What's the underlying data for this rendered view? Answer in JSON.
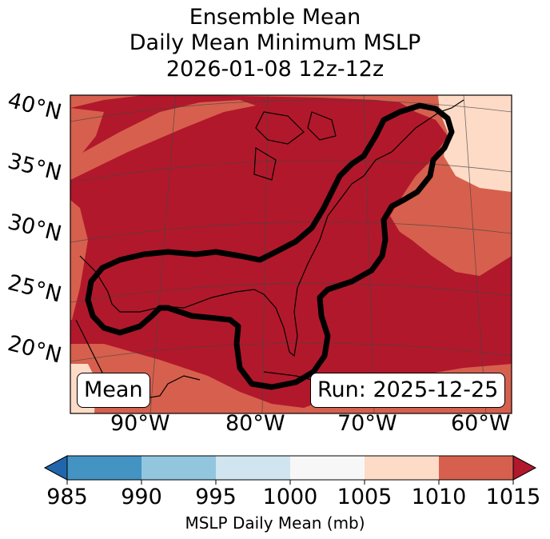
{
  "title": {
    "line1": "Ensemble Mean",
    "line2": "Daily Mean Minimum MSLP",
    "line3": "2026-01-08 12z-12z"
  },
  "lat_labels": [
    "40°N",
    "35°N",
    "30°N",
    "25°N",
    "20°N"
  ],
  "lon_labels": [
    "90°W",
    "80°W",
    "70°W",
    "60°W"
  ],
  "mean_box": "Mean",
  "run_box": "Run: 2025-12-25",
  "colorbar": {
    "label": "MSLP Daily Mean (mb)",
    "ticks": [
      "985",
      "990",
      "995",
      "1000",
      "1005",
      "1010",
      "1015"
    ],
    "colors": [
      "#2166ac",
      "#4393c3",
      "#92c5de",
      "#d1e5f0",
      "#f7f7f7",
      "#fddbc7",
      "#d6604d",
      "#b2182b"
    ]
  },
  "map_colors": {
    "band_1005_1010": "#fddbc7",
    "band_1010_1015": "#d6604d",
    "band_above_1015": "#b2182b"
  }
}
